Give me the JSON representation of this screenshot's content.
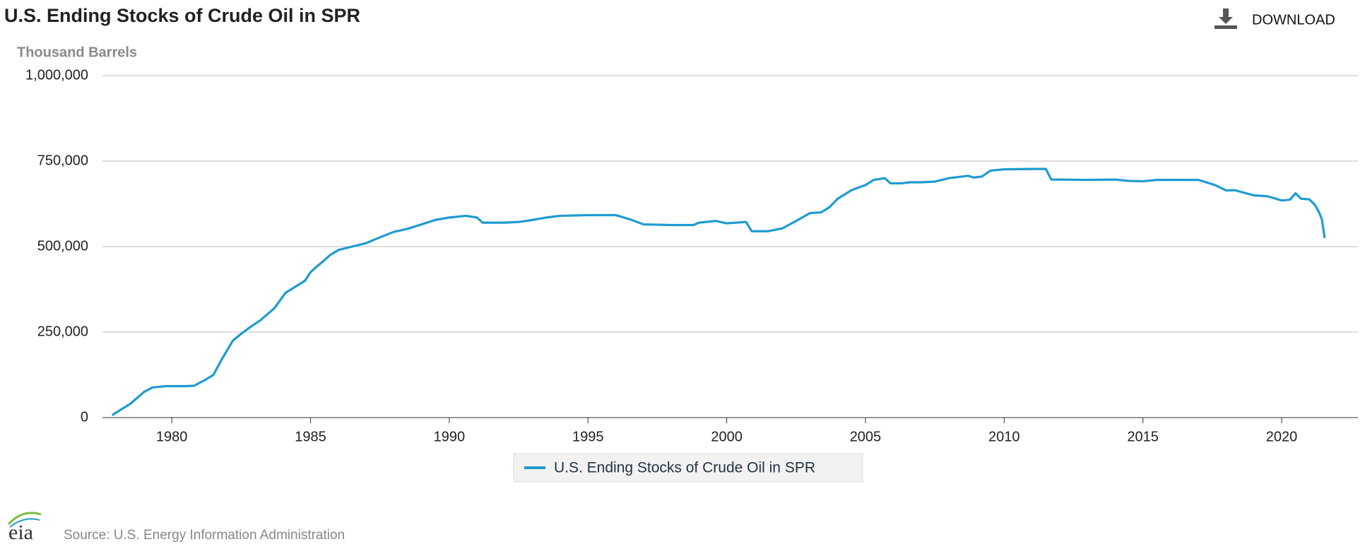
{
  "download": "DOWNLOAD",
  "source": "Source: U.S. Energy Information Administration",
  "logo": "eia",
  "chart_data": {
    "type": "line",
    "title": "U.S. Ending Stocks of Crude Oil in SPR",
    "y_label": "Thousand Barrels",
    "x": [
      1977.85,
      1978.1,
      1978.5,
      1979.0,
      1979.3,
      1979.8,
      1980.5,
      1980.8,
      1981.2,
      1981.5,
      1981.8,
      1982.2,
      1982.5,
      1982.8,
      1983.2,
      1983.7,
      1984.1,
      1984.5,
      1984.8,
      1985.0,
      1985.2,
      1985.5,
      1985.7,
      1986.0,
      1986.5,
      1987.0,
      1987.5,
      1988.0,
      1988.5,
      1989.0,
      1989.5,
      1990.0,
      1990.6,
      1991.0,
      1991.2,
      1992.0,
      1992.5,
      1993.0,
      1993.5,
      1994.0,
      1995.0,
      1996.0,
      1996.5,
      1997.0,
      1998.0,
      1998.8,
      1999.0,
      1999.6,
      2000.0,
      2000.7,
      2000.9,
      2001.5,
      2002.0,
      2002.5,
      2003.0,
      2003.4,
      2003.7,
      2004.0,
      2004.5,
      2005.0,
      2005.3,
      2005.7,
      2005.9,
      2006.3,
      2006.6,
      2007.0,
      2007.5,
      2008.0,
      2008.7,
      2008.9,
      2009.2,
      2009.5,
      2010.0,
      2011.0,
      2011.5,
      2011.7,
      2012.0,
      2013.0,
      2014.0,
      2014.5,
      2015.0,
      2015.5,
      2016.0,
      2017.0,
      2017.6,
      2018.0,
      2018.3,
      2019.0,
      2019.5,
      2020.0,
      2020.3,
      2020.5,
      2020.7,
      2021.0,
      2021.2,
      2021.35,
      2021.45,
      2021.55
    ],
    "series": [
      {
        "name": "U.S. Ending Stocks of Crude Oil in SPR",
        "color": "#1f9bd1",
        "values": [
          7000,
          20000,
          40000,
          75000,
          88000,
          92000,
          92000,
          93000,
          110000,
          125000,
          170000,
          225000,
          245000,
          263000,
          285000,
          320000,
          365000,
          385000,
          400000,
          425000,
          440000,
          460000,
          475000,
          490000,
          500000,
          510000,
          527000,
          543000,
          552000,
          565000,
          578000,
          585000,
          590000,
          585000,
          570000,
          570000,
          572000,
          578000,
          585000,
          590000,
          592000,
          592000,
          580000,
          565000,
          563000,
          563000,
          570000,
          575000,
          568000,
          572000,
          545000,
          545000,
          553000,
          575000,
          598000,
          600000,
          615000,
          640000,
          665000,
          680000,
          695000,
          700000,
          685000,
          685000,
          688000,
          688000,
          690000,
          700000,
          707000,
          702000,
          705000,
          722000,
          726000,
          727000,
          727000,
          696000,
          696000,
          695000,
          696000,
          692000,
          691000,
          695000,
          695000,
          695000,
          680000,
          664000,
          665000,
          650000,
          647000,
          635000,
          637000,
          656000,
          640000,
          638000,
          622000,
          600000,
          580000,
          525000
        ]
      }
    ],
    "xlim": [
      1977.5,
      2022.75
    ],
    "ylim": [
      0,
      1000000
    ],
    "xticks": [
      1980,
      1985,
      1990,
      1995,
      2000,
      2005,
      2010,
      2015,
      2020
    ],
    "yticks": [
      0,
      {
        "value": 250000,
        "label": "250,000"
      },
      {
        "value": 500000,
        "label": "500,000"
      },
      {
        "value": 750000,
        "label": "750,000"
      },
      {
        "value": 1000000,
        "label": "1,000,000"
      }
    ],
    "grid": true
  }
}
